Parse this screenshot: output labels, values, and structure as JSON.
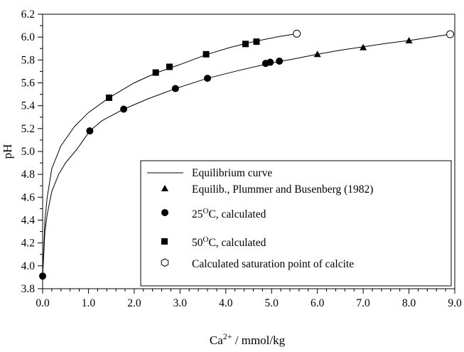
{
  "chart_data": {
    "type": "scatter",
    "xlabel_base": "Ca",
    "xlabel_sup": "2+",
    "xlabel_rest": " / mmol/kg",
    "ylabel": "pH",
    "xlim": [
      0,
      9
    ],
    "ylim": [
      3.8,
      6.2
    ],
    "x_ticks": [
      "0.0",
      "1.0",
      "2.0",
      "3.0",
      "4.0",
      "5.0",
      "6.0",
      "7.0",
      "8.0",
      "9.0"
    ],
    "y_ticks": [
      "3.8",
      "4.0",
      "4.2",
      "4.4",
      "4.6",
      "4.8",
      "5.0",
      "5.2",
      "5.4",
      "5.6",
      "5.8",
      "6.0",
      "6.2"
    ],
    "grid": false,
    "legend_position": "bottom-right",
    "series": [
      {
        "key": "curve",
        "label": "Equilibrium curve",
        "marker": "line",
        "points": [
          [
            0.0,
            3.91
          ],
          [
            0.05,
            4.3
          ],
          [
            0.1,
            4.45
          ],
          [
            0.2,
            4.65
          ],
          [
            0.35,
            4.8
          ],
          [
            0.5,
            4.9
          ],
          [
            0.75,
            5.02
          ],
          [
            1.03,
            5.18
          ],
          [
            1.3,
            5.27
          ],
          [
            1.77,
            5.37
          ],
          [
            2.3,
            5.46
          ],
          [
            2.9,
            5.55
          ],
          [
            3.6,
            5.64
          ],
          [
            4.3,
            5.71
          ],
          [
            4.95,
            5.77
          ],
          [
            5.5,
            5.81
          ],
          [
            6.0,
            5.85
          ],
          [
            6.5,
            5.885
          ],
          [
            7.0,
            5.915
          ],
          [
            7.5,
            5.945
          ],
          [
            8.0,
            5.97
          ],
          [
            8.5,
            6.0
          ],
          [
            8.9,
            6.025
          ]
        ]
      },
      {
        "key": "curve50",
        "label": "",
        "marker": "line",
        "points": [
          [
            0.0,
            3.91
          ],
          [
            0.05,
            4.4
          ],
          [
            0.1,
            4.6
          ],
          [
            0.2,
            4.85
          ],
          [
            0.4,
            5.05
          ],
          [
            0.7,
            5.22
          ],
          [
            1.0,
            5.34
          ],
          [
            1.45,
            5.47
          ],
          [
            2.0,
            5.6
          ],
          [
            2.5,
            5.69
          ],
          [
            3.0,
            5.76
          ],
          [
            3.6,
            5.85
          ],
          [
            4.1,
            5.91
          ],
          [
            4.6,
            5.96
          ],
          [
            5.1,
            6.0
          ],
          [
            5.55,
            6.03
          ]
        ]
      },
      {
        "key": "plummer",
        "label": "Equilib., Plummer and Busenberg (1982)",
        "marker": "triangle",
        "points": [
          [
            6.0,
            5.85
          ],
          [
            7.0,
            5.91
          ],
          [
            8.0,
            5.97
          ]
        ]
      },
      {
        "key": "calc25",
        "label": "25",
        "label_sup": "O",
        "label_rest": "C, calculated",
        "marker": "circle",
        "points": [
          [
            0.0,
            3.91
          ],
          [
            1.03,
            5.18
          ],
          [
            1.77,
            5.37
          ],
          [
            2.9,
            5.55
          ],
          [
            3.6,
            5.64
          ],
          [
            4.87,
            5.77
          ],
          [
            4.97,
            5.78
          ],
          [
            5.17,
            5.79
          ]
        ]
      },
      {
        "key": "calc50",
        "label": "50",
        "label_sup": "O",
        "label_rest": "C, calculated",
        "marker": "square",
        "points": [
          [
            1.45,
            5.47
          ],
          [
            2.47,
            5.69
          ],
          [
            2.77,
            5.74
          ],
          [
            3.57,
            5.85
          ],
          [
            4.43,
            5.94
          ],
          [
            4.67,
            5.96
          ]
        ]
      },
      {
        "key": "saturation",
        "label": "Calculated saturation point of calcite",
        "marker": "open-circle",
        "points": [
          [
            5.55,
            6.03
          ],
          [
            8.9,
            6.025
          ]
        ]
      }
    ],
    "colors": {
      "ink": "#000000",
      "background": "#ffffff"
    }
  }
}
